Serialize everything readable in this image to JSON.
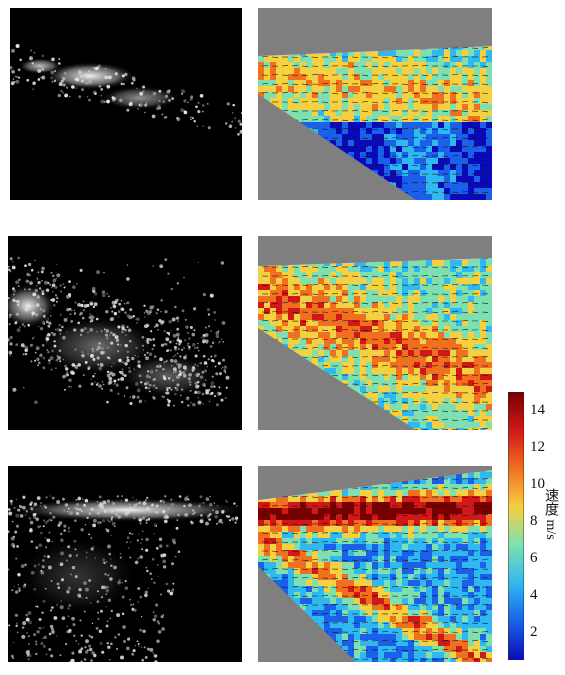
{
  "figure": {
    "rows": [
      {
        "name": "row-1"
      },
      {
        "name": "row-2"
      },
      {
        "name": "row-3"
      }
    ]
  },
  "colorbar": {
    "title": "速度 m/s",
    "ticks": [
      "14",
      "12",
      "10",
      "8",
      "6",
      "4",
      "2"
    ],
    "colors": [
      "#7a0000",
      "#d01818",
      "#f07020",
      "#f5d040",
      "#7ee0b0",
      "#30b8f0",
      "#1a60e8",
      "#0a0ab8"
    ]
  },
  "colors": {
    "background": "#ffffff",
    "mask_gray": "#7f7f7f",
    "raw_background": "#000000"
  }
}
